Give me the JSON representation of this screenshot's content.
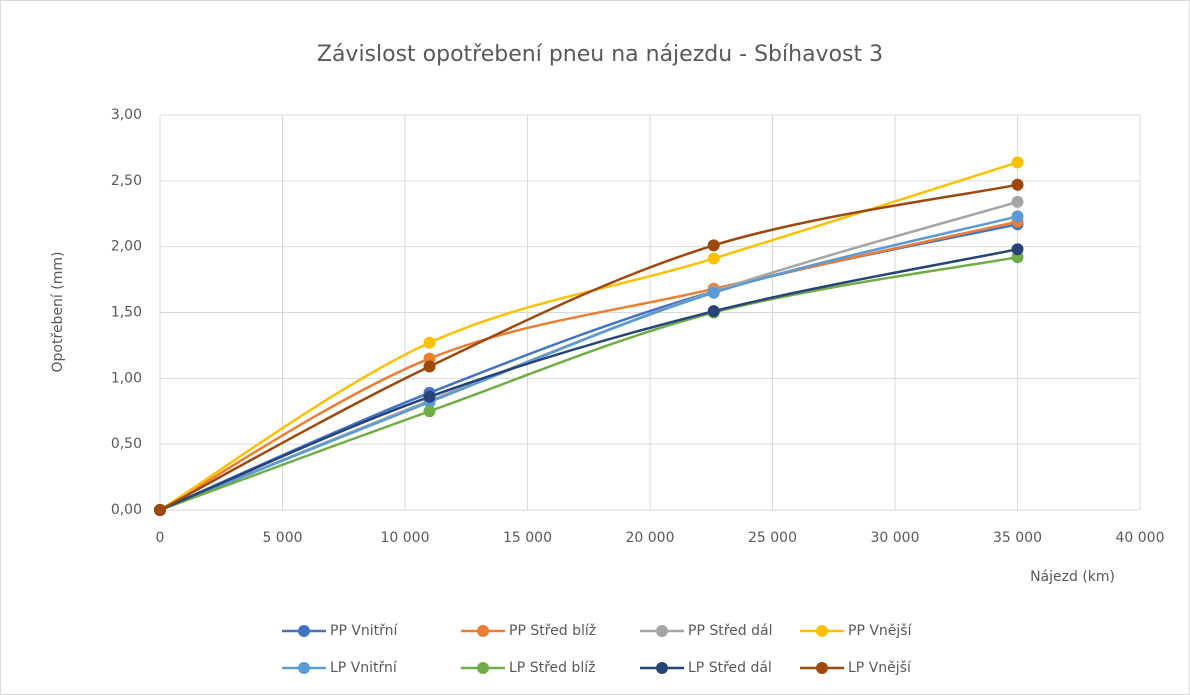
{
  "chart_data": {
    "type": "line",
    "smooth": true,
    "title": "Závislost opotřebení pneu na nájezdu - Sbíhavost 3",
    "x_label": "Nájezd (km)",
    "y_label": "Opotřebení (mm)",
    "x": [
      0,
      11000,
      22600,
      35000
    ],
    "series": [
      {
        "name": "PP Vnitřní",
        "color": "#4472c4",
        "values": [
          0,
          0.89,
          1.66,
          2.17
        ]
      },
      {
        "name": "PP Střed blíž",
        "color": "#ed7d31",
        "values": [
          0,
          1.15,
          1.68,
          2.19
        ]
      },
      {
        "name": "PP Střed dál",
        "color": "#a5a5a5",
        "values": [
          0,
          0.83,
          1.66,
          2.34
        ]
      },
      {
        "name": "PP Vnější",
        "color": "#ffc000",
        "values": [
          0,
          1.27,
          1.91,
          2.64
        ]
      },
      {
        "name": "LP Vnitřní",
        "color": "#5b9bd5",
        "values": [
          0,
          0.82,
          1.65,
          2.23
        ]
      },
      {
        "name": "LP Střed blíž",
        "color": "#70ad47",
        "values": [
          0,
          0.75,
          1.5,
          1.92
        ]
      },
      {
        "name": "LP Střed dál",
        "color": "#264478",
        "values": [
          0,
          0.86,
          1.51,
          1.98
        ]
      },
      {
        "name": "LP Vnější",
        "color": "#9e480e",
        "values": [
          0,
          1.09,
          2.01,
          2.47
        ]
      }
    ],
    "xlim": [
      0,
      40000
    ],
    "xticks": [
      0,
      {
        "value": 5000,
        "label": "5 000"
      },
      {
        "value": 10000,
        "label": "10 000"
      },
      {
        "value": 15000,
        "label": "15 000"
      },
      {
        "value": 20000,
        "label": "20 000"
      },
      {
        "value": 25000,
        "label": "25 000"
      },
      {
        "value": 30000,
        "label": "30 000"
      },
      {
        "value": 35000,
        "label": "35 000"
      },
      {
        "value": 40000,
        "label": "40 000"
      }
    ],
    "ylim": [
      0,
      3
    ],
    "yticks": [
      {
        "value": 0,
        "label": "0,00"
      },
      {
        "value": 0.5,
        "label": "0,50"
      },
      {
        "value": 1,
        "label": "1,00"
      },
      {
        "value": 1.5,
        "label": "1,50"
      },
      {
        "value": 2,
        "label": "2,00"
      },
      {
        "value": 2.5,
        "label": "2,50"
      },
      {
        "value": 3,
        "label": "3,00"
      }
    ],
    "grid": true,
    "legend": "bottom"
  }
}
